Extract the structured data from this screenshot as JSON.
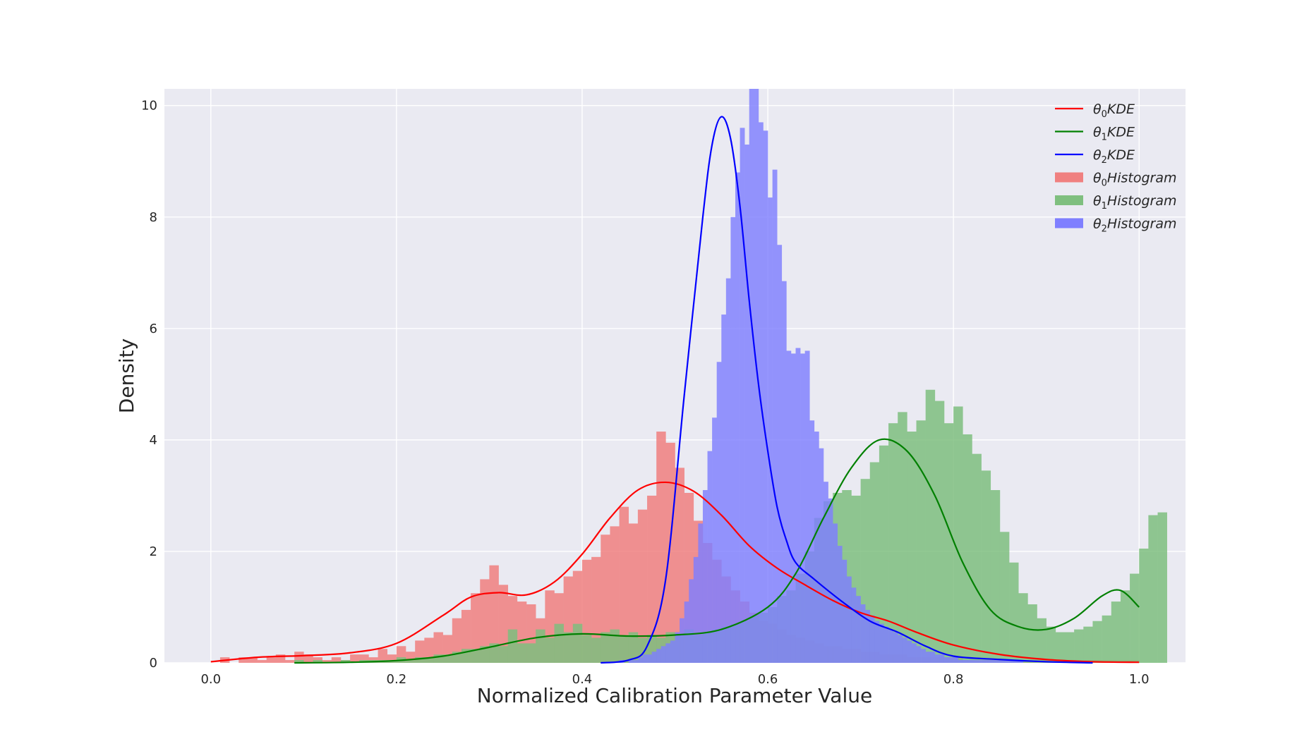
{
  "chart_data": {
    "type": "histogram",
    "xlabel": "Normalized Calibration Parameter Value",
    "ylabel": "Density",
    "xlim": [
      -0.05,
      1.05
    ],
    "ylim": [
      0,
      10.3
    ],
    "xticks": [
      "0.0",
      "0.2",
      "0.4",
      "0.6",
      "0.8",
      "1.0"
    ],
    "yticks": [
      "0",
      "2",
      "4",
      "6",
      "8",
      "10"
    ],
    "grid": true,
    "legend_position": "top-right",
    "colors": {
      "background": "#eaeaf2",
      "grid": "#ffffff",
      "theta0": "#ff0000",
      "theta1": "#008000",
      "theta2": "#0000ff",
      "theta0_fill": "#f08080",
      "theta1_fill": "#7fbf7f",
      "theta2_fill": "#7f7fff"
    },
    "legend": [
      {
        "base": "θ",
        "sub": "0",
        "text": "KDE",
        "kind": "line",
        "color": "#ff0000"
      },
      {
        "base": "θ",
        "sub": "1",
        "text": "KDE",
        "kind": "line",
        "color": "#008000"
      },
      {
        "base": "θ",
        "sub": "2",
        "text": "KDE",
        "kind": "line",
        "color": "#0000ff"
      },
      {
        "base": "θ",
        "sub": "0",
        "text": "Histogram",
        "kind": "patch",
        "color": "#f08080"
      },
      {
        "base": "θ",
        "sub": "1",
        "text": "Histogram",
        "kind": "patch",
        "color": "#7fbf7f"
      },
      {
        "base": "θ",
        "sub": "2",
        "text": "Histogram",
        "kind": "patch",
        "color": "#7f7fff"
      }
    ],
    "kde": [
      {
        "name": "θ0 KDE",
        "color": "#ff0000",
        "x": [
          0.0,
          0.05,
          0.1,
          0.15,
          0.2,
          0.25,
          0.28,
          0.31,
          0.34,
          0.37,
          0.4,
          0.43,
          0.46,
          0.49,
          0.52,
          0.55,
          0.58,
          0.61,
          0.64,
          0.67,
          0.7,
          0.73,
          0.76,
          0.8,
          0.85,
          0.9,
          0.95,
          1.0
        ],
        "y": [
          0.02,
          0.1,
          0.13,
          0.18,
          0.35,
          0.85,
          1.18,
          1.26,
          1.22,
          1.45,
          1.95,
          2.6,
          3.1,
          3.24,
          3.08,
          2.65,
          2.1,
          1.7,
          1.4,
          1.12,
          0.9,
          0.75,
          0.55,
          0.32,
          0.15,
          0.06,
          0.02,
          0.01
        ]
      },
      {
        "name": "θ1 KDE",
        "color": "#008000",
        "x": [
          0.09,
          0.15,
          0.2,
          0.25,
          0.3,
          0.35,
          0.4,
          0.45,
          0.5,
          0.55,
          0.6,
          0.63,
          0.66,
          0.69,
          0.72,
          0.75,
          0.78,
          0.81,
          0.84,
          0.87,
          0.9,
          0.93,
          0.96,
          0.98,
          1.0
        ],
        "y": [
          0.0,
          0.01,
          0.04,
          0.12,
          0.28,
          0.45,
          0.52,
          0.48,
          0.5,
          0.6,
          1.0,
          1.6,
          2.6,
          3.5,
          4.0,
          3.8,
          3.0,
          1.8,
          0.95,
          0.65,
          0.6,
          0.8,
          1.2,
          1.3,
          1.0
        ]
      },
      {
        "name": "θ2 KDE",
        "color": "#0000ff",
        "x": [
          0.42,
          0.45,
          0.47,
          0.49,
          0.51,
          0.53,
          0.54,
          0.55,
          0.56,
          0.57,
          0.58,
          0.59,
          0.6,
          0.61,
          0.62,
          0.63,
          0.65,
          0.68,
          0.71,
          0.74,
          0.77,
          0.8,
          0.85,
          0.9,
          0.95
        ],
        "y": [
          0.0,
          0.05,
          0.3,
          1.5,
          4.8,
          8.0,
          9.3,
          9.8,
          9.4,
          8.2,
          6.5,
          5.0,
          3.8,
          2.8,
          2.2,
          1.8,
          1.5,
          1.1,
          0.75,
          0.55,
          0.3,
          0.12,
          0.06,
          0.02,
          0.0
        ]
      }
    ],
    "histograms": [
      {
        "name": "θ0 Histogram",
        "color": "#f08080",
        "opacity": 0.85,
        "start": 0.0,
        "bin_width": 0.01,
        "values": [
          0.0,
          0.1,
          0.0,
          0.1,
          0.1,
          0.05,
          0.1,
          0.15,
          0.05,
          0.2,
          0.15,
          0.1,
          0.05,
          0.1,
          0.05,
          0.15,
          0.15,
          0.1,
          0.25,
          0.15,
          0.3,
          0.2,
          0.4,
          0.45,
          0.55,
          0.5,
          0.8,
          0.95,
          1.25,
          1.5,
          1.75,
          1.4,
          1.2,
          1.1,
          1.05,
          0.8,
          1.3,
          1.25,
          1.55,
          1.65,
          1.85,
          1.9,
          2.3,
          2.45,
          2.8,
          2.5,
          2.75,
          3.0,
          4.15,
          3.95,
          3.5,
          3.05,
          2.55,
          2.15,
          1.85,
          1.55,
          1.3,
          1.1,
          0.9,
          0.75,
          0.7,
          0.6,
          0.5,
          0.45,
          0.4,
          0.35,
          0.3,
          0.3,
          0.25,
          0.25,
          0.2,
          0.2,
          0.15,
          0.15,
          0.15,
          0.1,
          0.1,
          0.1,
          0.1,
          0.1,
          0.1,
          0.05,
          0.05,
          0.05,
          0.05,
          0.05,
          0.05,
          0.05,
          0.05,
          0.05,
          0.05,
          0.05,
          0.05,
          0.05,
          0.05,
          0.05,
          0.05,
          0.05,
          0.05,
          0.05
        ]
      },
      {
        "name": "θ1 Histogram",
        "color": "#7fbf7f",
        "opacity": 0.85,
        "start": 0.0,
        "bin_width": 0.01,
        "values": [
          0.0,
          0.0,
          0.0,
          0.0,
          0.0,
          0.0,
          0.0,
          0.0,
          0.0,
          0.05,
          0.0,
          0.05,
          0.0,
          0.0,
          0.05,
          0.0,
          0.05,
          0.05,
          0.05,
          0.05,
          0.1,
          0.05,
          0.1,
          0.1,
          0.15,
          0.15,
          0.2,
          0.25,
          0.25,
          0.3,
          0.35,
          0.3,
          0.6,
          0.35,
          0.35,
          0.6,
          0.45,
          0.7,
          0.55,
          0.7,
          0.5,
          0.45,
          0.55,
          0.6,
          0.5,
          0.55,
          0.45,
          0.5,
          0.45,
          0.55,
          0.5,
          0.6,
          0.5,
          0.55,
          0.6,
          0.65,
          0.7,
          0.75,
          0.85,
          0.9,
          1.0,
          1.2,
          1.3,
          1.6,
          2.0,
          2.6,
          2.9,
          3.05,
          3.1,
          3.0,
          3.3,
          3.6,
          3.9,
          4.3,
          4.5,
          4.15,
          4.35,
          4.9,
          4.7,
          4.3,
          4.6,
          4.1,
          3.75,
          3.45,
          3.1,
          2.35,
          1.8,
          1.25,
          1.05,
          0.8,
          0.65,
          0.55,
          0.55,
          0.6,
          0.65,
          0.75,
          0.85,
          1.1,
          1.3,
          1.6,
          2.05,
          2.65,
          2.7
        ]
      },
      {
        "name": "θ2 Histogram",
        "color": "#7f7fff",
        "opacity": 0.82,
        "start": 0.42,
        "bin_width": 0.005,
        "values": [
          0.0,
          0.0,
          0.0,
          0.0,
          0.05,
          0.0,
          0.05,
          0.05,
          0.1,
          0.15,
          0.15,
          0.2,
          0.25,
          0.3,
          0.35,
          0.4,
          0.55,
          0.8,
          1.1,
          1.5,
          1.9,
          2.5,
          3.1,
          3.8,
          4.4,
          5.4,
          6.25,
          6.9,
          8.0,
          8.8,
          9.6,
          9.3,
          10.3,
          10.3,
          9.7,
          9.55,
          8.35,
          8.85,
          7.5,
          6.85,
          5.6,
          5.55,
          5.65,
          5.55,
          5.6,
          4.35,
          4.15,
          3.85,
          3.25,
          2.95,
          2.5,
          2.1,
          1.85,
          1.55,
          1.35,
          1.2,
          1.05,
          0.95,
          0.85,
          0.75,
          0.7,
          0.65,
          0.6,
          0.55,
          0.5,
          0.45,
          0.4,
          0.35,
          0.3,
          0.25,
          0.2,
          0.2,
          0.15,
          0.15,
          0.1,
          0.1,
          0.1,
          0.05,
          0.05,
          0.05,
          0.05,
          0.05,
          0.05,
          0.05,
          0.05,
          0.05,
          0.05,
          0.05,
          0.05,
          0.05,
          0.05
        ]
      }
    ]
  }
}
